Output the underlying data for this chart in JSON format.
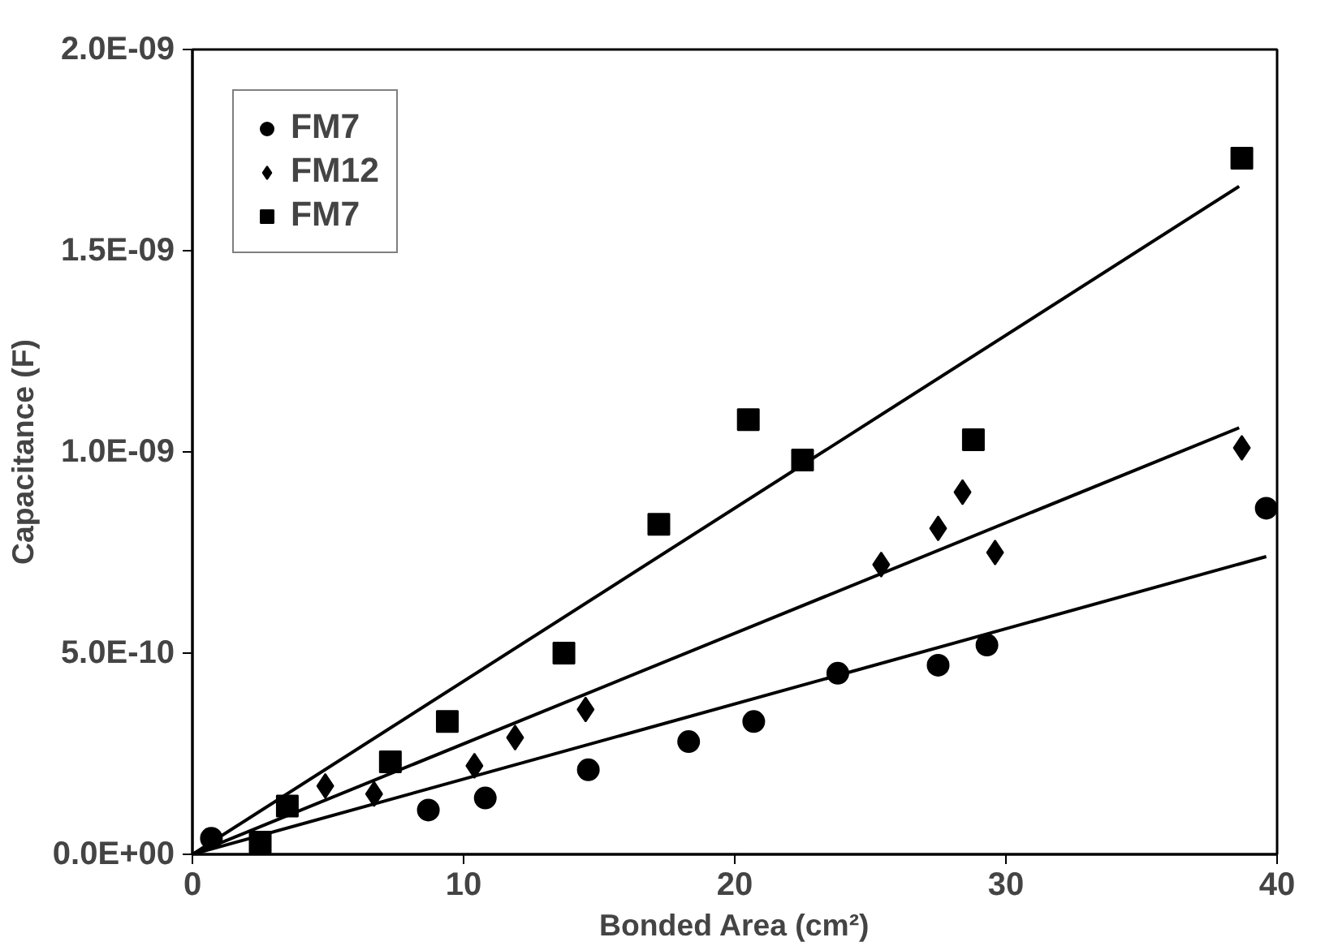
{
  "chart_data": {
    "type": "scatter",
    "xlabel": "Bonded Area (cm²)",
    "ylabel": "Capacitance (F)",
    "xlim": [
      0,
      40
    ],
    "ylim": [
      0,
      2e-09
    ],
    "xticks": [
      0,
      10,
      20,
      30,
      40
    ],
    "yticks": [
      {
        "value": 0,
        "label": "0.0E+00"
      },
      {
        "value": 5e-10,
        "label": "5.0E-10"
      },
      {
        "value": 1e-09,
        "label": "1.0E-09"
      },
      {
        "value": 1.5e-09,
        "label": "1.5E-09"
      },
      {
        "value": 2e-09,
        "label": "2.0E-09"
      }
    ],
    "grid": false,
    "legend": "top left",
    "series": [
      {
        "name": "FM7",
        "color": "#000000",
        "marker": "circle",
        "x": [
          0.7,
          8.7,
          10.8,
          14.6,
          18.3,
          20.7,
          23.8,
          27.5,
          29.3,
          39.6
        ],
        "values": [
          4e-11,
          1.1e-10,
          1.4e-10,
          2.1e-10,
          2.8e-10,
          3.3e-10,
          4.5e-10,
          4.7e-10,
          5.2e-10,
          8.6e-10
        ]
      },
      {
        "name": "FM12",
        "color": "#000000",
        "marker": "diamond",
        "x": [
          4.9,
          6.7,
          10.4,
          11.9,
          14.5,
          25.4,
          27.5,
          28.4,
          29.6,
          38.7
        ],
        "values": [
          1.7e-10,
          1.5e-10,
          2.2e-10,
          2.9e-10,
          3.6e-10,
          7.2e-10,
          8.1e-10,
          9e-10,
          7.5e-10,
          1.01e-09
        ]
      },
      {
        "name": "FM7",
        "color": "#000000",
        "marker": "square",
        "x": [
          2.5,
          3.5,
          7.3,
          9.4,
          13.7,
          17.2,
          20.5,
          22.5,
          28.8,
          38.7
        ],
        "values": [
          3e-11,
          1.2e-10,
          2.3e-10,
          3.3e-10,
          5e-10,
          8.2e-10,
          1.08e-09,
          9.8e-10,
          1.03e-09,
          1.73e-09
        ]
      },
      {
        "type": "line",
        "color": "#000000",
        "marker": "none",
        "line_style": "solid",
        "x": [
          0,
          39.6
        ],
        "values": [
          0,
          7.4e-10
        ]
      },
      {
        "type": "line",
        "color": "#000000",
        "marker": "none",
        "line_style": "solid",
        "x": [
          0,
          38.6
        ],
        "values": [
          0,
          1.06e-09
        ]
      },
      {
        "type": "line",
        "color": "#000000",
        "marker": "none",
        "line_style": "solid",
        "x": [
          0,
          38.6
        ],
        "values": [
          0,
          1.66e-09
        ]
      }
    ]
  }
}
